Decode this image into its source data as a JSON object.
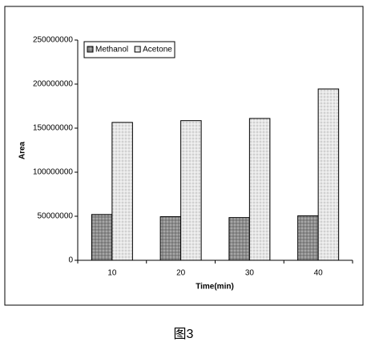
{
  "chart_data": {
    "type": "bar",
    "x_label": "Time(min)",
    "y_label": "Area",
    "caption": "图3",
    "categories": [
      "10",
      "20",
      "30",
      "40"
    ],
    "series": [
      {
        "name": "Methanol",
        "color": "#8c8c8c",
        "values": [
          52000000,
          49500000,
          48500000,
          50500000
        ]
      },
      {
        "name": "Acetone",
        "color": "#e6e6e6",
        "values": [
          156500000,
          158500000,
          161000000,
          194500000
        ]
      }
    ],
    "ylim": [
      0,
      250000000
    ],
    "yticks": [
      0,
      50000000,
      100000000,
      150000000,
      200000000,
      250000000
    ],
    "legend": "top-left"
  }
}
